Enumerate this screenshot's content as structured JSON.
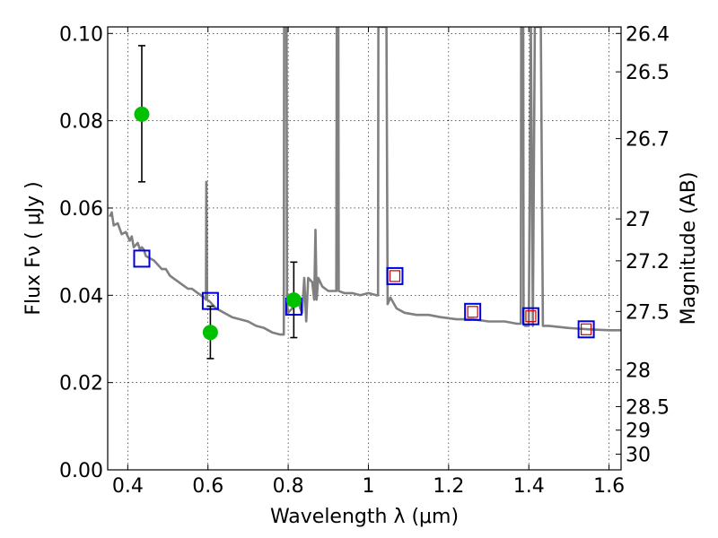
{
  "chart_data": {
    "type": "scatter",
    "xlabel": "Wavelength  λ (μm)",
    "ylabel": "Flux  Fν  ( μJy )",
    "ylabel_right": "Magnitude (AB)",
    "xlim": [
      0.35,
      1.63
    ],
    "ylim": [
      0.0,
      0.1015
    ],
    "x_ticks": [
      0.4,
      0.6,
      0.8,
      1.0,
      1.2,
      1.4,
      1.6
    ],
    "x_tick_labels": [
      "0.4",
      "0.6",
      "0.8",
      "1",
      "1.2",
      "1.4",
      "1.6"
    ],
    "y_ticks": [
      0.0,
      0.02,
      0.04,
      0.06,
      0.08,
      0.1
    ],
    "y_tick_labels": [
      "0.00",
      "0.02",
      "0.04",
      "0.06",
      "0.08",
      "0.10"
    ],
    "right_ticks": [
      {
        "label": "26.4",
        "flux": 0.1
      },
      {
        "label": "26.5",
        "flux": 0.0912
      },
      {
        "label": "26.7",
        "flux": 0.0759
      },
      {
        "label": "27",
        "flux": 0.0575
      },
      {
        "label": "27.2",
        "flux": 0.0479
      },
      {
        "label": "27.5",
        "flux": 0.0363
      },
      {
        "label": "28",
        "flux": 0.0229
      },
      {
        "label": "28.5",
        "flux": 0.0145
      },
      {
        "label": "29",
        "flux": 0.0091
      },
      {
        "label": "30",
        "flux": 0.0036
      }
    ],
    "grid": true,
    "colors": {
      "model": "#808080",
      "observed": "#00c000",
      "model_box": "#0000dd",
      "model_box_inner": "#cc0000",
      "errorbar": "#000000"
    },
    "series": [
      {
        "marker": "line",
        "points": [
          [
            0.355,
            0.058
          ],
          [
            0.36,
            0.059
          ],
          [
            0.365,
            0.056
          ],
          [
            0.375,
            0.0565
          ],
          [
            0.385,
            0.054
          ],
          [
            0.395,
            0.0545
          ],
          [
            0.405,
            0.0525
          ],
          [
            0.41,
            0.0535
          ],
          [
            0.415,
            0.051
          ],
          [
            0.42,
            0.0515
          ],
          [
            0.425,
            0.052
          ],
          [
            0.43,
            0.0505
          ],
          [
            0.435,
            0.051
          ],
          [
            0.44,
            0.0505
          ],
          [
            0.445,
            0.049
          ],
          [
            0.455,
            0.0485
          ],
          [
            0.465,
            0.048
          ],
          [
            0.475,
            0.047
          ],
          [
            0.485,
            0.046
          ],
          [
            0.495,
            0.046
          ],
          [
            0.505,
            0.0445
          ],
          [
            0.52,
            0.0435
          ],
          [
            0.535,
            0.0425
          ],
          [
            0.55,
            0.0415
          ],
          [
            0.56,
            0.0415
          ],
          [
            0.575,
            0.0405
          ],
          [
            0.59,
            0.0395
          ],
          [
            0.595,
            0.039
          ],
          [
            0.596,
            0.066
          ],
          [
            0.598,
            0.039
          ],
          [
            0.605,
            0.0385
          ],
          [
            0.62,
            0.037
          ],
          [
            0.64,
            0.036
          ],
          [
            0.66,
            0.035
          ],
          [
            0.68,
            0.0345
          ],
          [
            0.7,
            0.034
          ],
          [
            0.72,
            0.033
          ],
          [
            0.74,
            0.0325
          ],
          [
            0.76,
            0.0315
          ],
          [
            0.78,
            0.031
          ],
          [
            0.789,
            0.031
          ],
          [
            0.79,
            0.1015
          ],
          [
            0.796,
            0.1015
          ],
          [
            0.797,
            0.038
          ],
          [
            0.8,
            0.036
          ],
          [
            0.81,
            0.037
          ],
          [
            0.82,
            0.038
          ],
          [
            0.825,
            0.039
          ],
          [
            0.83,
            0.037
          ],
          [
            0.835,
            0.036
          ],
          [
            0.84,
            0.044
          ],
          [
            0.845,
            0.034
          ],
          [
            0.85,
            0.044
          ],
          [
            0.86,
            0.043
          ],
          [
            0.865,
            0.039
          ],
          [
            0.868,
            0.055
          ],
          [
            0.871,
            0.039
          ],
          [
            0.875,
            0.044
          ],
          [
            0.885,
            0.042
          ],
          [
            0.9,
            0.041
          ],
          [
            0.915,
            0.041
          ],
          [
            0.92,
            0.041
          ],
          [
            0.921,
            0.1015
          ],
          [
            0.925,
            0.1015
          ],
          [
            0.926,
            0.041
          ],
          [
            0.94,
            0.0405
          ],
          [
            0.96,
            0.0405
          ],
          [
            0.98,
            0.04
          ],
          [
            1.0,
            0.0405
          ],
          [
            1.02,
            0.04
          ],
          [
            1.024,
            0.04
          ],
          [
            1.025,
            0.1015
          ],
          [
            1.035,
            0.1015
          ],
          [
            1.045,
            0.1015
          ],
          [
            1.048,
            0.038
          ],
          [
            1.055,
            0.0395
          ],
          [
            1.07,
            0.037
          ],
          [
            1.09,
            0.036
          ],
          [
            1.12,
            0.0355
          ],
          [
            1.15,
            0.0355
          ],
          [
            1.18,
            0.035
          ],
          [
            1.22,
            0.0345
          ],
          [
            1.26,
            0.0345
          ],
          [
            1.3,
            0.034
          ],
          [
            1.34,
            0.034
          ],
          [
            1.37,
            0.0335
          ],
          [
            1.38,
            0.0335
          ],
          [
            1.381,
            0.1015
          ],
          [
            1.386,
            0.1015
          ],
          [
            1.387,
            0.0335
          ],
          [
            1.39,
            0.033
          ],
          [
            1.4,
            0.033
          ],
          [
            1.405,
            0.1015
          ],
          [
            1.41,
            0.033
          ],
          [
            1.415,
            0.1015
          ],
          [
            1.43,
            0.1015
          ],
          [
            1.435,
            0.033
          ],
          [
            1.45,
            0.033
          ],
          [
            1.5,
            0.0325
          ],
          [
            1.55,
            0.0322
          ],
          [
            1.6,
            0.032
          ],
          [
            1.63,
            0.032
          ]
        ]
      },
      {
        "marker": "circle",
        "points": [
          {
            "x": 0.435,
            "y": 0.0815,
            "yerr_low": 0.066,
            "yerr_high": 0.0972
          },
          {
            "x": 0.606,
            "y": 0.0315,
            "yerr_low": 0.0255,
            "yerr_high": 0.0375
          },
          {
            "x": 0.814,
            "y": 0.0389,
            "yerr_low": 0.0303,
            "yerr_high": 0.0476
          }
        ]
      },
      {
        "marker": "square",
        "points": [
          {
            "x": 0.435,
            "y": 0.0484
          },
          {
            "x": 0.606,
            "y": 0.0387
          },
          {
            "x": 0.814,
            "y": 0.0374
          },
          {
            "x": 1.066,
            "y": 0.0444
          },
          {
            "x": 1.26,
            "y": 0.0362
          },
          {
            "x": 1.405,
            "y": 0.0352
          },
          {
            "x": 1.543,
            "y": 0.0322
          }
        ]
      }
    ]
  }
}
